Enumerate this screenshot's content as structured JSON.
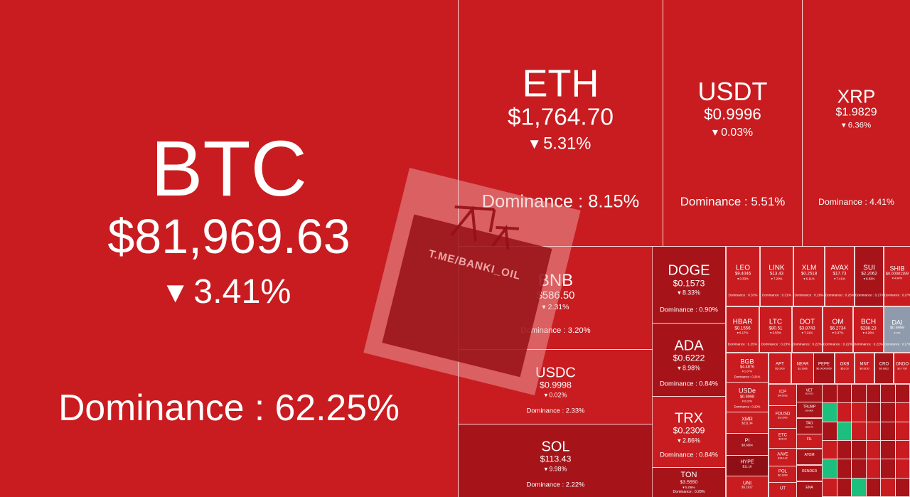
{
  "colors": {
    "red": "#c81c20",
    "dark_red": "#a6141a",
    "grey": "#8f9bac",
    "green": "#1dbf7f"
  },
  "tiles": [
    {
      "symbol": "BTC",
      "price": "$81,969.63",
      "change": "▾ 3.41%",
      "dominance": "Dominance : 62.25%",
      "color": "#c81c20"
    },
    {
      "symbol": "ETH",
      "price": "$1,764.70",
      "change": "▾ 5.31%",
      "dominance": "Dominance : 8.15%",
      "color": "#c81c20"
    },
    {
      "symbol": "USDT",
      "price": "$0.9996",
      "change": "▾ 0.03%",
      "dominance": "Dominance : 5.51%",
      "color": "#c81c20"
    },
    {
      "symbol": "XRP",
      "price": "$1.9829",
      "change": "▾ 6.36%",
      "dominance": "Dominance : 4.41%",
      "color": "#c81c20"
    },
    {
      "symbol": "BNB",
      "price": "$586.50",
      "change": "▾ 2.31%",
      "dominance": "Dominance : 3.20%",
      "color": "#c81c20"
    },
    {
      "symbol": "USDC",
      "price": "$0.9998",
      "change": "▾ 0.02%",
      "dominance": "Dominance : 2.33%",
      "color": "#c81c20"
    },
    {
      "symbol": "SOL",
      "price": "$113.43",
      "change": "▾ 9.98%",
      "dominance": "Dominance : 2.22%",
      "color": "#a6141a"
    },
    {
      "symbol": "DOGE",
      "price": "$0.1573",
      "change": "▾ 8.33%",
      "dominance": "Dominance : 0.90%",
      "color": "#a6141a"
    },
    {
      "symbol": "ADA",
      "price": "$0.6222",
      "change": "▾ 8.98%",
      "dominance": "Dominance : 0.84%",
      "color": "#a6141a"
    },
    {
      "symbol": "TRX",
      "price": "$0.2309",
      "change": "▾ 2.86%",
      "dominance": "Dominance : 0.84%",
      "color": "#c81c20"
    },
    {
      "symbol": "TON",
      "price": "$3.5550",
      "change": "▾ 5.06%",
      "dominance": "Dominance : 0.28%",
      "color": "#a6141a"
    },
    {
      "symbol": "LEO",
      "price": "$9.4046",
      "change": "▾ 0.33%",
      "dominance": "Dominance : 0.33%",
      "color": "#c81c20"
    },
    {
      "symbol": "LINK",
      "price": "$13.43",
      "change": "▾ 7.20%",
      "dominance": "Dominance : 0.31%",
      "color": "#c81c20"
    },
    {
      "symbol": "XLM",
      "price": "$0.2518",
      "change": "▾ 6.11%",
      "dominance": "Dominance : 0.29%",
      "color": "#c81c20"
    },
    {
      "symbol": "AVAX",
      "price": "$17.73",
      "change": "▾ 7.41%",
      "dominance": "Dominance : 0.26%",
      "color": "#c81c20"
    },
    {
      "symbol": "SUI",
      "price": "$2.2062",
      "change": "▾ 8.82%",
      "dominance": "Dominance : 0.27%",
      "color": "#a6141a"
    },
    {
      "symbol": "SHIB",
      "price": "$0.00001199",
      "change": "▾ 4.84%",
      "dominance": "Dominance : 0.27%",
      "color": "#c81c20"
    },
    {
      "symbol": "HBAR",
      "price": "$0.1556",
      "change": "▾ 6.17%",
      "dominance": "Dominance : 0.25%",
      "color": "#c81c20"
    },
    {
      "symbol": "LTC",
      "price": "$80.51",
      "change": "▾ 2.50%",
      "dominance": "Dominance : 0.23%",
      "color": "#c81c20"
    },
    {
      "symbol": "DOT",
      "price": "$3.8743",
      "change": "▾ 7.11%",
      "dominance": "Dominance : 0.22%",
      "color": "#c81c20"
    },
    {
      "symbol": "OM",
      "price": "$6.2734",
      "change": "▾ 0.37%",
      "dominance": "Dominance : 0.22%",
      "color": "#c81c20"
    },
    {
      "symbol": "BCH",
      "price": "$288.23",
      "change": "▾ 4.26%",
      "dominance": "Dominance : 0.22%",
      "color": "#c81c20"
    },
    {
      "symbol": "DAI",
      "price": "$0.9999",
      "change": "▾ 0%",
      "dominance": "Dominance : 0.17%",
      "color": "#8f9bac"
    },
    {
      "symbol": "BGB",
      "price": "$4.4876",
      "change": "▾ 1.07%",
      "dominance": "Dominance : 0.21%",
      "color": "#c81c20"
    },
    {
      "symbol": "APT",
      "price": "$5.0300",
      "change": "",
      "dominance": "",
      "color": "#c81c20"
    },
    {
      "symbol": "NEAR",
      "price": "$2.3666",
      "change": "",
      "dominance": "",
      "color": "#c81c20"
    },
    {
      "symbol": "PEPE",
      "price": "$0.00000650",
      "change": "",
      "dominance": "",
      "color": "#a6141a"
    },
    {
      "symbol": "OKB",
      "price": "$51.03",
      "change": "",
      "dominance": "",
      "color": "#c81c20"
    },
    {
      "symbol": "MNT",
      "price": "$0.8150",
      "change": "",
      "dominance": "",
      "color": "#c81c20"
    },
    {
      "symbol": "CRO",
      "price": "$0.0822",
      "change": "",
      "dominance": "",
      "color": "#a6141a"
    },
    {
      "symbol": "ONDO",
      "price": "$0.7730",
      "change": "",
      "dominance": "",
      "color": "#c81c20"
    },
    {
      "symbol": "USDe",
      "price": "$0.9998",
      "change": "▾ 0.02%",
      "dominance": "Dominance : 0.20%",
      "color": "#c81c20"
    },
    {
      "symbol": "XMR",
      "price": "$211.34",
      "change": "",
      "dominance": "",
      "color": "#c81c20"
    },
    {
      "symbol": "PI",
      "price": "$0.6604",
      "change": "",
      "dominance": "",
      "color": "#a6141a"
    },
    {
      "symbol": "HYPE",
      "price": "$11.18",
      "change": "",
      "dominance": "",
      "color": "#8e1016"
    },
    {
      "symbol": "UNI",
      "price": "$5.1917",
      "change": "",
      "dominance": "",
      "color": "#c81c20"
    },
    {
      "symbol": "ICP",
      "price": "$4.5032",
      "change": "",
      "dominance": "",
      "color": "#c81c20"
    },
    {
      "symbol": "FDUSD",
      "price": "$1.0000",
      "change": "",
      "dominance": "",
      "color": "#c81c20"
    },
    {
      "symbol": "ETC",
      "price": "$15.02",
      "change": "",
      "dominance": "",
      "color": "#c81c20"
    },
    {
      "symbol": "AAVE",
      "price": "$144.42",
      "change": "",
      "dominance": "",
      "color": "#c81c20"
    },
    {
      "symbol": "POL",
      "price": "$0.1890",
      "change": "",
      "dominance": "",
      "color": "#c81c20"
    },
    {
      "symbol": "UT",
      "price": "",
      "change": "",
      "dominance": "",
      "color": "#c81c20"
    },
    {
      "symbol": "VET",
      "price": "$0.0232",
      "change": "",
      "dominance": "",
      "color": "#a6141a"
    },
    {
      "symbol": "TRUMP",
      "price": "$8.6800",
      "change": "",
      "dominance": "",
      "color": "#a6141a"
    },
    {
      "symbol": "TAO",
      "price": "$208.45",
      "change": "",
      "dominance": "",
      "color": "#a6141a"
    },
    {
      "symbol": "FIL",
      "price": "",
      "change": "",
      "dominance": "",
      "color": "#c81c20"
    },
    {
      "symbol": "ATOM",
      "price": "",
      "change": "",
      "dominance": "",
      "color": "#a6141a"
    },
    {
      "symbol": "RENDER",
      "price": "",
      "change": "",
      "dominance": "",
      "color": "#a6141a"
    },
    {
      "symbol": "ENA",
      "price": "",
      "change": "",
      "dominance": "",
      "color": "#a6141a"
    }
  ],
  "mini_tiles": [
    "#a6141a",
    "#a6141a",
    "#a6141a",
    "#a6141a",
    "#a6141a",
    "#a6141a",
    "#1dbf7f",
    "#c81c20",
    "#c81c20",
    "#a6141a",
    "#a6141a",
    "#c81c20",
    "#a6141a",
    "#1dbf7f",
    "#c81c20",
    "#c81c20",
    "#a6141a",
    "#c81c20",
    "#c81c20",
    "#a6141a",
    "#a6141a",
    "#c81c20",
    "#a6141a",
    "#c81c20",
    "#1dbf7f",
    "#a6141a",
    "#a6141a",
    "#c81c20",
    "#a6141a",
    "#c81c20",
    "#c81c20",
    "#a6141a",
    "#1dbf7f",
    "#a6141a",
    "#c81c20",
    "#a6141a"
  ],
  "watermark": "T.ME/BANKI_OIL"
}
